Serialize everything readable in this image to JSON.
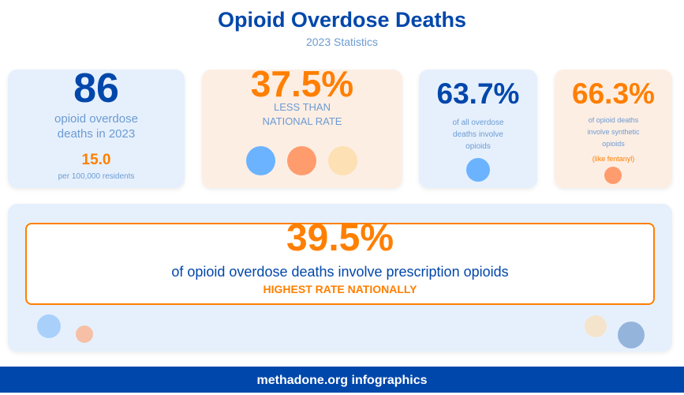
{
  "header": {
    "title": "Opioid Overdose Deaths",
    "subtitle": "2023 Statistics"
  },
  "cards": [
    {
      "value": "86",
      "label_line1": "opioid overdose",
      "label_line2": "deaths in 2023",
      "rate": "15.0",
      "rate_label": "per 100,000 residents"
    },
    {
      "value": "37.5%",
      "label_line1": "LESS THAN",
      "label_line2": "NATIONAL RATE"
    },
    {
      "value": "63.7%",
      "label_line1": "of all overdose",
      "label_line2": "deaths involve",
      "label_line3": "opioids"
    },
    {
      "value": "66.3%",
      "label_line1": "of opioid deaths",
      "label_line2": "involve synthetic",
      "label_line3": "opioids",
      "note": "(like fentanyl)"
    }
  ],
  "highlight": {
    "value": "39.5%",
    "label": "of opioid overdose deaths involve prescription opioids",
    "tagline": "HIGHEST RATE NATIONALLY"
  },
  "footer": {
    "text": "methadone.org infographics"
  },
  "colors": {
    "blue": "#0047ab",
    "orange": "#ff7f00",
    "light_blue_text": "#6c9bd2"
  }
}
